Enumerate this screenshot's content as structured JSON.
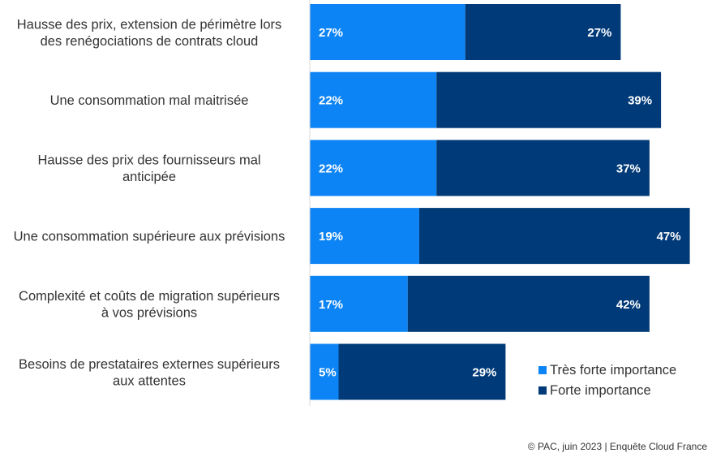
{
  "chart_data": {
    "type": "bar",
    "orientation": "horizontal",
    "stacked": true,
    "categories": [
      [
        "Hausse des prix, extension de périmètre lors",
        "des renégociations de contrats cloud"
      ],
      [
        "Une consommation mal maitrisée"
      ],
      [
        "Hausse des prix des fournisseurs mal",
        "anticipée"
      ],
      [
        "Une consommation supérieure aux prévisions"
      ],
      [
        "Complexité et coûts de migration supérieurs",
        "à vos prévisions"
      ],
      [
        "Besoins de prestataires externes supérieurs",
        "aux attentes"
      ]
    ],
    "series": [
      {
        "name": "Très forte importance",
        "color": "#0d84f5",
        "values": [
          27,
          22,
          22,
          19,
          17,
          5
        ],
        "labels": [
          "27%",
          "22%",
          "22%",
          "19%",
          "17%",
          "5%"
        ]
      },
      {
        "name": "Forte importance",
        "color": "#003a78",
        "values": [
          27,
          39,
          37,
          47,
          42,
          29
        ],
        "labels": [
          "27%",
          "39%",
          "37%",
          "47%",
          "42%",
          "29%"
        ]
      }
    ],
    "xlim": [
      0,
      70
    ],
    "grid": false,
    "legend_position": "bottom-right"
  },
  "source": "© PAC, juin 2023 | Enquête Cloud France"
}
